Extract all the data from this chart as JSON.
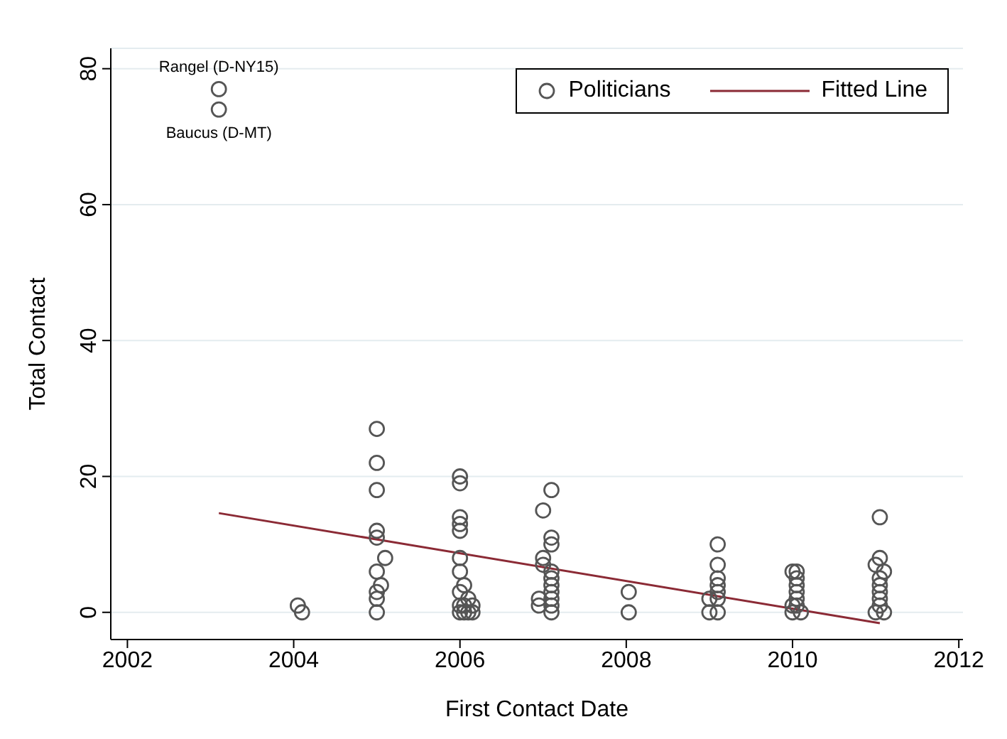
{
  "chart_data": {
    "type": "scatter",
    "xlabel": "First Contact Date",
    "ylabel": "Total Contact",
    "xlim": [
      2001.8,
      2012.05
    ],
    "ylim": [
      -4,
      83
    ],
    "xticks": [
      2002,
      2004,
      2006,
      2008,
      2010,
      2012
    ],
    "yticks": [
      0,
      20,
      40,
      60,
      80
    ],
    "grid": "y",
    "legend": "top right",
    "marker": "circle",
    "series": [
      {
        "name": "Politicians",
        "color": "#555555",
        "x": [
          2003.1,
          2003.1,
          2004.05,
          2004.1,
          2005.0,
          2005.0,
          2005.0,
          2005.0,
          2005.0,
          2005.1,
          2005.0,
          2005.05,
          2005.0,
          2005.0,
          2005.0,
          2006.0,
          2006.0,
          2006.0,
          2006.0,
          2006.0,
          2006.0,
          2006.0,
          2006.05,
          2006.0,
          2006.1,
          2006.05,
          2006.15,
          2006.0,
          2006.05,
          2006.1,
          2006.15,
          2006.0,
          2007.1,
          2007.0,
          2007.1,
          2007.1,
          2007.0,
          2007.0,
          2007.1,
          2007.1,
          2007.1,
          2007.1,
          2006.95,
          2007.1,
          2006.95,
          2007.1,
          2007.1,
          2008.03,
          2008.03,
          2009.1,
          2009.1,
          2009.1,
          2009.1,
          2009.1,
          2009.1,
          2009.0,
          2009.1,
          2009.0,
          2010.0,
          2010.05,
          2010.05,
          2010.05,
          2010.05,
          2010.05,
          2010.0,
          2010.05,
          2010.0,
          2010.1,
          2011.05,
          2011.05,
          2011.0,
          2011.1,
          2011.05,
          2011.05,
          2011.05,
          2011.05,
          2011.05,
          2011.0,
          2011.1
        ],
        "values": [
          77,
          74,
          1,
          0,
          27,
          22,
          18,
          12,
          11,
          8,
          6,
          4,
          3,
          2,
          0,
          20,
          19,
          14,
          13,
          12,
          8,
          6,
          4,
          3,
          2,
          1,
          1,
          0,
          0,
          0,
          0,
          1,
          18,
          15,
          11,
          10,
          8,
          7,
          6,
          5,
          4,
          3,
          2,
          2,
          1,
          1,
          0,
          3,
          0,
          10,
          7,
          5,
          4,
          3,
          2,
          2,
          0,
          0,
          6,
          6,
          5,
          4,
          3,
          2,
          1,
          1,
          0,
          0,
          14,
          8,
          7,
          6,
          5,
          4,
          3,
          2,
          1,
          0,
          0
        ]
      },
      {
        "name": "Fitted Line",
        "type": "line",
        "marker": "none",
        "color": "#8b2a35",
        "x": [
          2003.1,
          2011.05
        ],
        "values": [
          14.6,
          -1.6
        ]
      }
    ],
    "annotations": [
      {
        "text": "Rangel (D-NY15)",
        "x": 2003.1,
        "y": 77
      },
      {
        "text": "Baucus (D-MT)",
        "x": 2003.1,
        "y": 74
      }
    ]
  }
}
